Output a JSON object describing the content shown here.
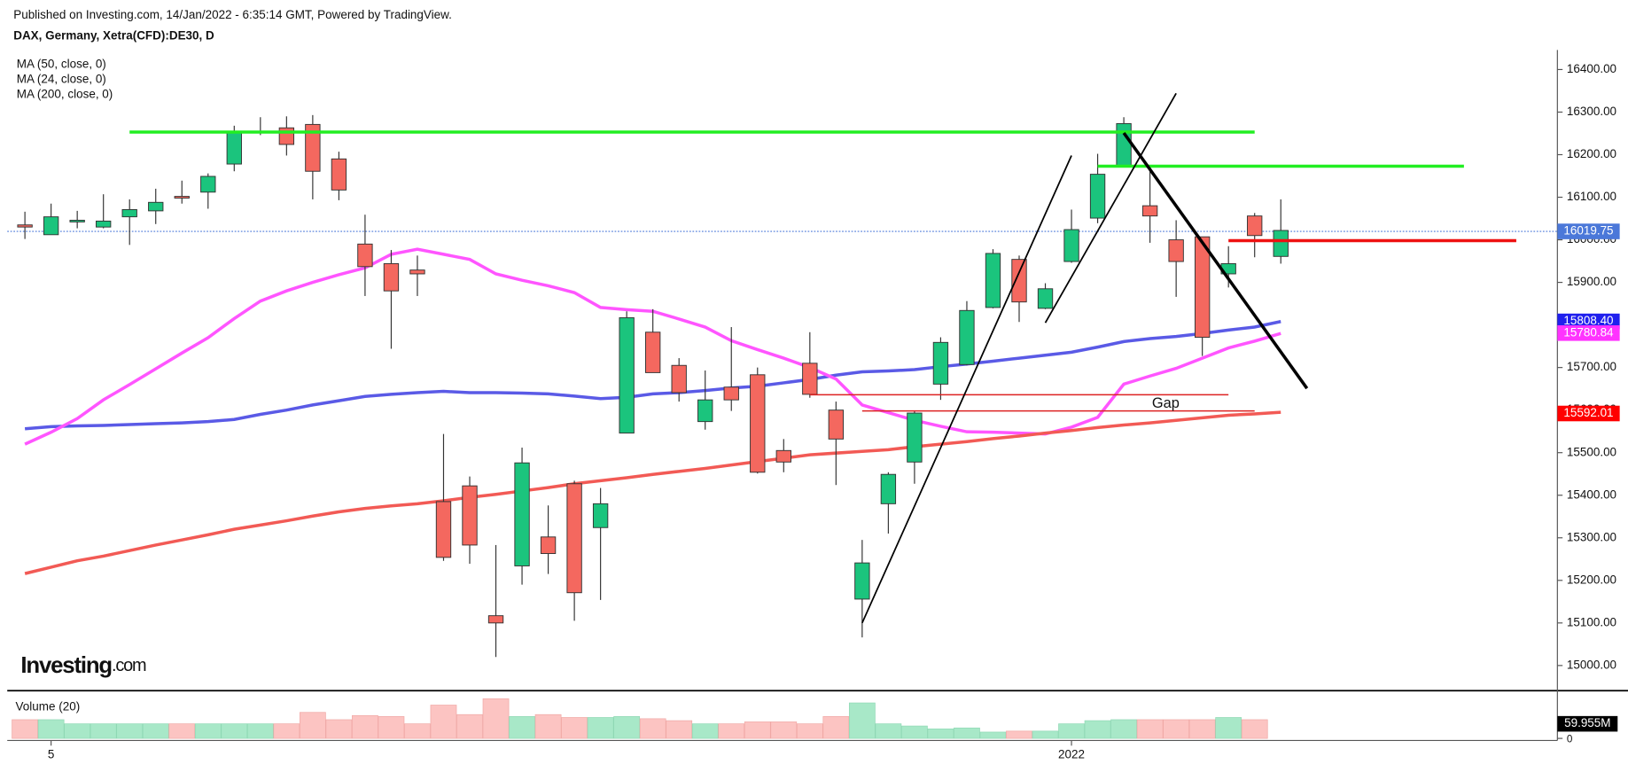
{
  "chart_data": {
    "type": "candlestick",
    "header": "Published on Investing.com, 14/Jan/2022 - 6:35:14 GMT, Powered by TradingView.",
    "title": "DAX, Germany, Xetra(CFD):DE30, D",
    "logo": {
      "main": "Investing",
      "suffix": ".com"
    },
    "categories": [
      null,
      "5",
      null,
      null,
      null,
      null,
      null,
      null,
      null,
      null,
      null,
      null,
      null,
      null,
      null,
      null,
      null,
      null,
      null,
      null,
      null,
      null,
      null,
      null,
      null,
      null,
      null,
      null,
      null,
      null,
      null,
      null,
      null,
      null,
      null,
      null,
      null,
      null,
      null,
      null,
      "2022",
      null,
      null,
      null,
      null,
      null,
      null,
      null,
      null
    ],
    "up_color": "#1bc47d",
    "down_color": "#f4685f",
    "open": [
      16035,
      16012,
      16042,
      16030,
      16054,
      16068,
      16102,
      16112,
      16178,
      16251,
      16263,
      16271,
      16190,
      15990,
      15944,
      15929,
      15385,
      15422,
      15117,
      15234,
      15302,
      15427,
      15324,
      15546,
      15783,
      15705,
      15573,
      15654,
      15683,
      15505,
      15710,
      15600,
      15156,
      15380,
      15478,
      15661,
      15707,
      15841,
      15954,
      15839,
      15949,
      16051,
      16173,
      16080,
      16000,
      16007,
      15920,
      16056,
      15961
    ],
    "high": [
      16066,
      16085,
      16068,
      16107,
      16095,
      16120,
      16139,
      16156,
      16268,
      16288,
      16290,
      16293,
      16207,
      16059,
      15976,
      15963,
      15544,
      15444,
      15283,
      15512,
      15376,
      15434,
      15417,
      15832,
      15837,
      15722,
      15693,
      15795,
      15700,
      15532,
      15783,
      15620,
      15295,
      15454,
      15598,
      15771,
      15856,
      15978,
      15963,
      15898,
      16071,
      16202,
      16288,
      16161,
      16046,
      16007,
      15985,
      16063,
      16095
    ],
    "low": [
      16002,
      16012,
      16027,
      16027,
      15988,
      16037,
      16085,
      16073,
      16161,
      16246,
      16198,
      16095,
      16093,
      15868,
      15744,
      15868,
      15246,
      15239,
      15020,
      15190,
      15215,
      15105,
      15154,
      15546,
      15688,
      15620,
      15554,
      15598,
      15451,
      15454,
      15629,
      15424,
      15066,
      15310,
      15427,
      15624,
      15705,
      15839,
      15807,
      15837,
      15946,
      16039,
      16173,
      15993,
      15866,
      15727,
      15888,
      15959,
      15944
    ],
    "close": [
      16030,
      16054,
      16046,
      16044,
      16071,
      16088,
      16098,
      16149,
      16251,
      16254,
      16224,
      16161,
      16117,
      15937,
      15880,
      15920,
      15254,
      15283,
      15100,
      15476,
      15263,
      15171,
      15380,
      15817,
      15688,
      15641,
      15624,
      15624,
      15454,
      15478,
      15637,
      15532,
      15241,
      15449,
      15593,
      15759,
      15834,
      15968,
      15854,
      15885,
      16024,
      16154,
      16273,
      16056,
      15949,
      15771,
      15944,
      16010,
      16022
    ],
    "ma": [
      {
        "name": "MA (50, close, 0)",
        "color": "#5a5ae6",
        "values": [
          15556,
          15561,
          15563,
          15564,
          15566,
          15568,
          15570,
          15573,
          15578,
          15590,
          15600,
          15612,
          15622,
          15632,
          15637,
          15641,
          15644,
          15641,
          15641,
          15640,
          15638,
          15633,
          15627,
          15630,
          15638,
          15641,
          15646,
          15652,
          15656,
          15664,
          15672,
          15682,
          15690,
          15692,
          15695,
          15702,
          15708,
          15715,
          15722,
          15729,
          15736,
          15748,
          15761,
          15768,
          15773,
          15780,
          15788,
          15795,
          15808
        ]
      },
      {
        "name": "MA (24, close, 0)",
        "color": "#ff55ff",
        "values": [
          15520,
          15548,
          15580,
          15624,
          15660,
          15697,
          15734,
          15770,
          15815,
          15856,
          15880,
          15900,
          15918,
          15934,
          15966,
          15978,
          15966,
          15954,
          15920,
          15905,
          15892,
          15876,
          15841,
          15836,
          15832,
          15814,
          15795,
          15763,
          15742,
          15722,
          15700,
          15673,
          15612,
          15594,
          15576,
          15562,
          15549,
          15548,
          15546,
          15544,
          15560,
          15583,
          15661,
          15680,
          15698,
          15722,
          15746,
          15762,
          15780
        ]
      },
      {
        "name": "MA (200, close, 0)",
        "color": "#f25a55",
        "values": [
          15216,
          15231,
          15246,
          15257,
          15270,
          15283,
          15295,
          15307,
          15320,
          15330,
          15340,
          15351,
          15361,
          15369,
          15375,
          15380,
          15387,
          15395,
          15402,
          15410,
          15418,
          15427,
          15434,
          15441,
          15449,
          15456,
          15463,
          15471,
          15479,
          15487,
          15495,
          15499,
          15503,
          15507,
          15514,
          15520,
          15526,
          15533,
          15539,
          15546,
          15552,
          15559,
          15565,
          15570,
          15576,
          15582,
          15588,
          15591,
          15595
        ]
      }
    ],
    "ylim": [
      14941,
      16446
    ],
    "yticks": [
      {
        "value": 15000,
        "label": "15000.00"
      },
      {
        "value": 15100,
        "label": "15100.00"
      },
      {
        "value": 15200,
        "label": "15200.00"
      },
      {
        "value": 15300,
        "label": "15300.00"
      },
      {
        "value": 15400,
        "label": "15400.00"
      },
      {
        "value": 15500,
        "label": "15500.00"
      },
      {
        "value": 15600,
        "label": "15600.00"
      },
      {
        "value": 15700,
        "label": "15700.00"
      },
      {
        "value": 15800,
        "label": "15800.00"
      },
      {
        "value": 15900,
        "label": "15900.00"
      },
      {
        "value": 16000,
        "label": "16000.00"
      },
      {
        "value": 16100,
        "label": "16100.00"
      },
      {
        "value": 16200,
        "label": "16200.00"
      },
      {
        "value": 16300,
        "label": "16300.00"
      },
      {
        "value": 16400,
        "label": "16400.00"
      }
    ],
    "price_labels": [
      {
        "value": 16019.75,
        "label": "16019.75",
        "color": "#4b78d9",
        "line": true
      },
      {
        "value": 15808.4,
        "label": "15808.40",
        "color": "#2020ee"
      },
      {
        "value": 15780.84,
        "label": "15780.84",
        "color": "#ff33ff"
      },
      {
        "value": 15592.01,
        "label": "15592.01",
        "color": "#ff0000"
      }
    ],
    "volume": {
      "title": "Volume (20)",
      "up_color": "#a8e8c8",
      "down_color": "#fcc4c2",
      "values": [
        77,
        77,
        60,
        60,
        60,
        60,
        60,
        60,
        60,
        60,
        60,
        107,
        77,
        94,
        90,
        60,
        137,
        98,
        163,
        90,
        98,
        86,
        86,
        90,
        81,
        73,
        60,
        60,
        68,
        68,
        60,
        90,
        146,
        60,
        51,
        39,
        43,
        26,
        30,
        30,
        60,
        73,
        77,
        77,
        77,
        77,
        86,
        77,
        null
      ],
      "ylim": [
        0,
        188
      ],
      "yticks": [
        0
      ],
      "last": {
        "value": 59.955,
        "label": "59.955M"
      }
    },
    "drawings": {
      "hlines": [
        {
          "value": 16253,
          "from": 4,
          "to": 47,
          "color": "#22ee22",
          "width": 3
        },
        {
          "value": 16173,
          "from": 41,
          "to": 55,
          "color": "#22ee22",
          "width": 3
        },
        {
          "value": 15998,
          "from": 46,
          "to": 57,
          "color": "#ee1111",
          "width": 3
        },
        {
          "value": 15636,
          "from": 30,
          "to": 46,
          "color": "#dd2222",
          "width": 1.3
        },
        {
          "value": 15598,
          "from": 32,
          "to": 47,
          "color": "#dd2222",
          "width": 1.3
        }
      ],
      "trendlines": [
        {
          "from": [
            32,
            15100
          ],
          "to": [
            40,
            16198
          ],
          "width": 1.5
        },
        {
          "from": [
            39,
            15805
          ],
          "to": [
            44,
            16344
          ],
          "width": 1.5
        },
        {
          "from": [
            42,
            16251
          ],
          "to": [
            49,
            15651
          ],
          "width": 3
        }
      ],
      "texts": [
        {
          "text": "Gap",
          "at": [
            43.6,
            15615
          ]
        }
      ]
    }
  }
}
